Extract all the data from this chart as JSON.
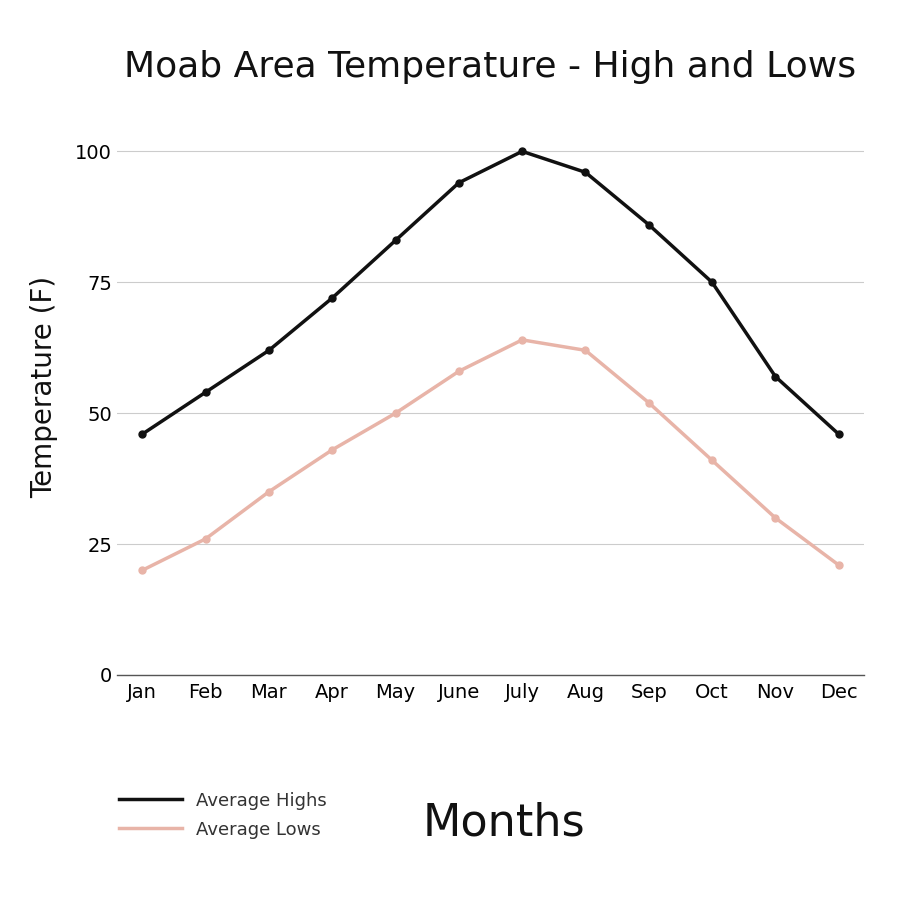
{
  "title": "Moab Area Temperature - High and Lows",
  "xlabel": "Months",
  "ylabel": "Temperature (F)",
  "months": [
    "Jan",
    "Feb",
    "Mar",
    "Apr",
    "May",
    "June",
    "July",
    "Aug",
    "Sep",
    "Oct",
    "Nov",
    "Dec"
  ],
  "avg_highs": [
    46,
    54,
    62,
    72,
    83,
    94,
    100,
    96,
    86,
    75,
    57,
    46
  ],
  "avg_lows": [
    20,
    26,
    35,
    43,
    50,
    58,
    64,
    62,
    52,
    41,
    30,
    21
  ],
  "high_color": "#111111",
  "low_color": "#e8b4a8",
  "line_width": 2.5,
  "marker_size": 5,
  "ylim": [
    0,
    110
  ],
  "yticks": [
    0,
    25,
    50,
    75,
    100
  ],
  "background_color": "#ffffff",
  "grid_color": "#cccccc",
  "legend_high": "Average Highs",
  "legend_low": "Average Lows",
  "title_fontsize": 26,
  "axis_label_fontsize": 20,
  "tick_fontsize": 14,
  "legend_fontsize": 13,
  "months_label_fontsize": 32
}
